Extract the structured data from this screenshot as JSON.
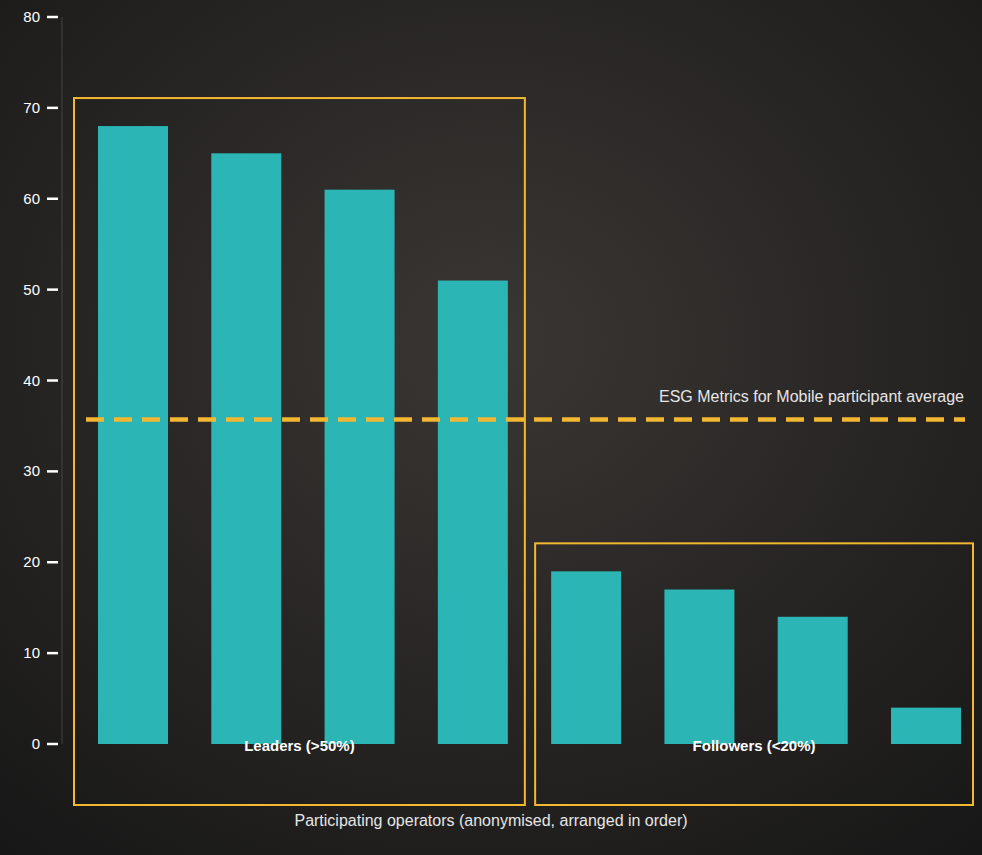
{
  "chart_data": {
    "type": "bar",
    "categories": [
      null,
      null,
      null,
      null,
      null,
      null,
      null,
      null
    ],
    "values": [
      68,
      65,
      61,
      51,
      19,
      17,
      14,
      4
    ],
    "color": "#2bb5b5",
    "ylim": [
      0,
      80
    ],
    "yticks": [
      0,
      10,
      20,
      30,
      40,
      50,
      60,
      70,
      80
    ],
    "grid": false,
    "x_label": "Participating operators (anonymised, arranged in order)",
    "groups": [
      {
        "label": "Leaders (>50%)",
        "count": 4
      },
      {
        "label": "Followers (<20%)",
        "count": 4
      }
    ],
    "reference_line": {
      "label": "ESG Metrics for Mobile participant average",
      "value": 35.7
    }
  }
}
